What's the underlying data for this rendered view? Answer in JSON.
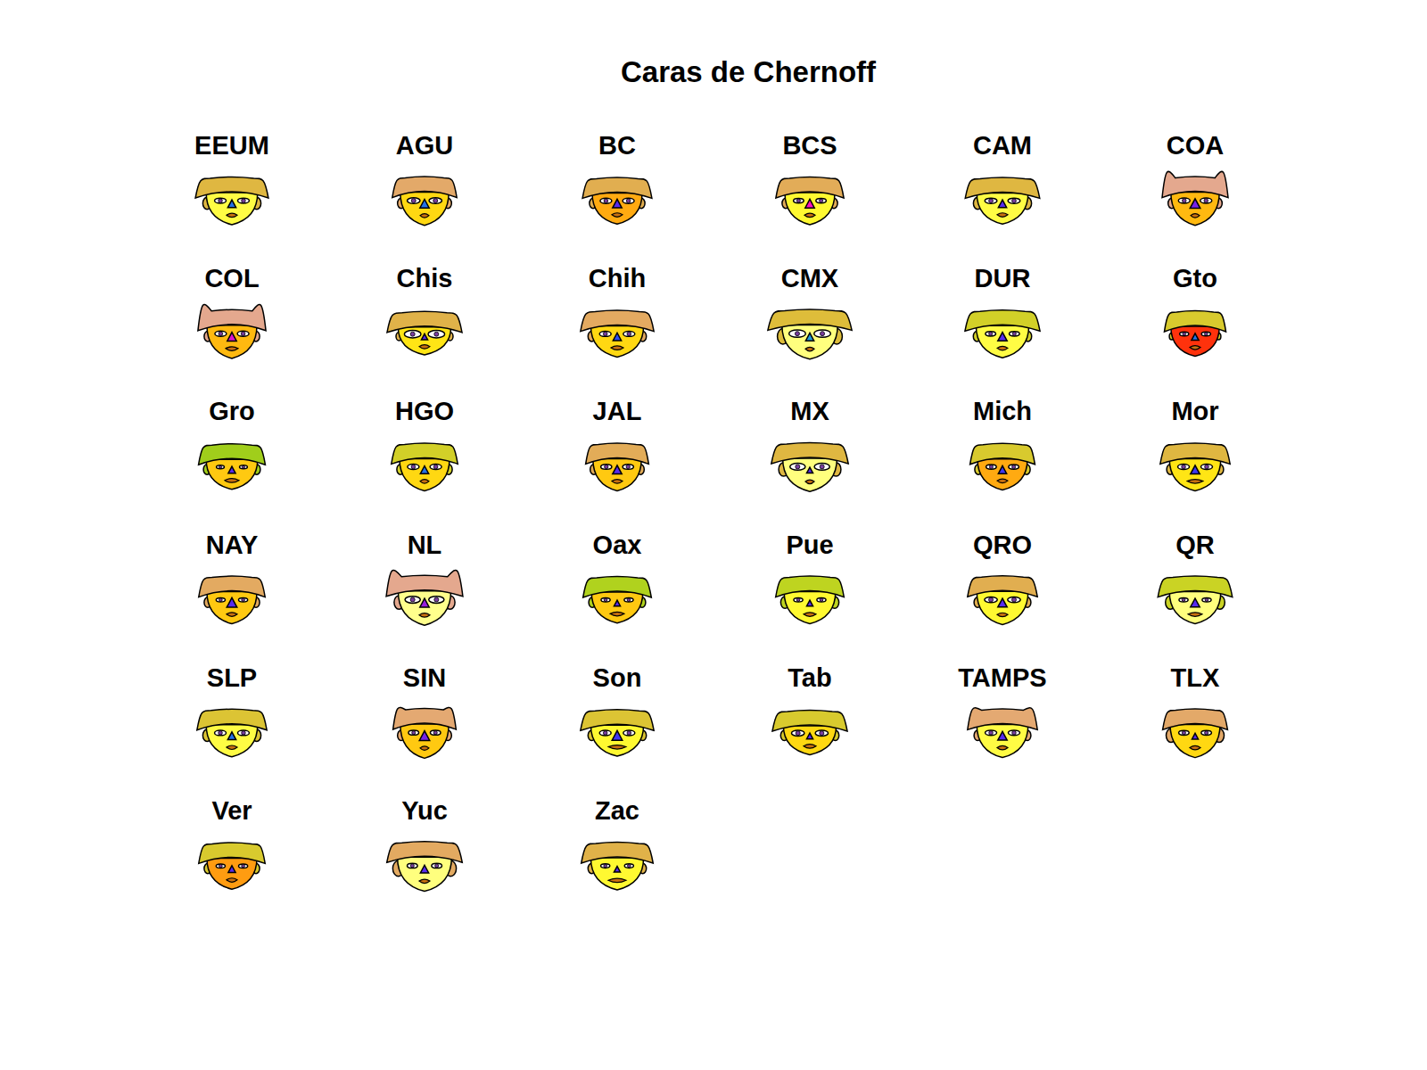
{
  "chart_data": {
    "type": "chernoff",
    "title": "Caras de Chernoff",
    "value_range": [
      0,
      1
    ],
    "faces": [
      {
        "name": "EEUM",
        "values": [
          0.5,
          0.55,
          0.7,
          0.5,
          0.8,
          0.5,
          0.4,
          0.2,
          0.3,
          0.4
        ]
      },
      {
        "name": "AGU",
        "values": [
          0.55,
          0.45,
          0.55,
          0.75,
          0.55,
          0.6,
          0.5,
          0.2,
          0.2,
          0.3
        ]
      },
      {
        "name": "BC",
        "values": [
          0.45,
          0.5,
          0.65,
          0.6,
          0.4,
          0.5,
          0.5,
          0.5,
          0.3,
          0.3
        ]
      },
      {
        "name": "BCS",
        "values": [
          0.5,
          0.5,
          0.6,
          0.65,
          0.75,
          0.4,
          0.5,
          1.0,
          0.3,
          0.3
        ]
      },
      {
        "name": "CAM",
        "values": [
          0.45,
          0.55,
          0.75,
          0.5,
          0.8,
          0.55,
          0.4,
          0.5,
          0.3,
          0.4
        ]
      },
      {
        "name": "COA",
        "values": [
          0.55,
          0.45,
          0.6,
          0.95,
          0.45,
          0.5,
          0.6,
          0.6,
          0.2,
          0.3
        ]
      },
      {
        "name": "COL",
        "values": [
          0.55,
          0.5,
          0.6,
          0.95,
          0.45,
          0.5,
          0.5,
          0.9,
          0.4,
          0.3
        ]
      },
      {
        "name": "Chis",
        "values": [
          0.3,
          0.6,
          0.7,
          0.55,
          0.6,
          0.9,
          0.2,
          0.5,
          0.3,
          0.2
        ]
      },
      {
        "name": "Chih",
        "values": [
          0.45,
          0.6,
          0.65,
          0.7,
          0.55,
          0.5,
          0.4,
          0.3,
          0.4,
          0.3
        ]
      },
      {
        "name": "CMX",
        "values": [
          0.6,
          0.7,
          0.85,
          0.45,
          0.9,
          0.9,
          0.4,
          0.1,
          0.2,
          0.6
        ]
      },
      {
        "name": "DUR",
        "values": [
          0.5,
          0.6,
          0.7,
          0.3,
          0.8,
          0.4,
          0.5,
          0.5,
          0.3,
          0.3
        ]
      },
      {
        "name": "Gto",
        "values": [
          0.4,
          0.45,
          0.45,
          0.35,
          0.05,
          0.3,
          0.3,
          0.2,
          0.3,
          0.1
        ]
      },
      {
        "name": "Gro",
        "values": [
          0.4,
          0.55,
          0.5,
          0.1,
          0.5,
          0.2,
          0.3,
          0.5,
          0.5,
          0.3
        ]
      },
      {
        "name": "HGO",
        "values": [
          0.5,
          0.5,
          0.55,
          0.3,
          0.55,
          0.5,
          0.4,
          0.2,
          0.2,
          0.3
        ]
      },
      {
        "name": "JAL",
        "values": [
          0.5,
          0.45,
          0.5,
          0.65,
          0.5,
          0.45,
          0.5,
          0.5,
          0.3,
          0.3
        ]
      },
      {
        "name": "MX",
        "values": [
          0.55,
          0.65,
          0.7,
          0.5,
          0.9,
          0.8,
          0.2,
          0.5,
          0.2,
          0.5
        ]
      },
      {
        "name": "Mich",
        "values": [
          0.45,
          0.5,
          0.5,
          0.35,
          0.4,
          0.4,
          0.4,
          0.4,
          0.3,
          0.3
        ]
      },
      {
        "name": "Mor",
        "values": [
          0.5,
          0.55,
          0.6,
          0.5,
          0.6,
          0.5,
          0.5,
          0.4,
          0.6,
          0.3
        ]
      },
      {
        "name": "NAY",
        "values": [
          0.5,
          0.5,
          0.55,
          0.7,
          0.5,
          0.3,
          0.6,
          0.5,
          0.3,
          0.3
        ]
      },
      {
        "name": "NL",
        "values": [
          0.6,
          0.6,
          0.75,
          0.95,
          0.92,
          0.8,
          0.5,
          0.7,
          0.3,
          0.5
        ]
      },
      {
        "name": "Oax",
        "values": [
          0.45,
          0.55,
          0.55,
          0.15,
          0.5,
          0.3,
          0.2,
          0.5,
          0.5,
          0.3
        ]
      },
      {
        "name": "Pue",
        "values": [
          0.5,
          0.55,
          0.55,
          0.2,
          0.75,
          0.3,
          0.2,
          0.5,
          0.4,
          0.4
        ]
      },
      {
        "name": "QRO",
        "values": [
          0.55,
          0.55,
          0.6,
          0.6,
          0.75,
          0.6,
          0.5,
          0.5,
          0.3,
          0.3
        ]
      },
      {
        "name": "QR",
        "values": [
          0.5,
          0.55,
          0.75,
          0.25,
          0.9,
          0.3,
          0.5,
          0.5,
          0.5,
          0.5
        ]
      },
      {
        "name": "SLP",
        "values": [
          0.5,
          0.55,
          0.6,
          0.4,
          0.8,
          0.5,
          0.4,
          0.2,
          0.3,
          0.4
        ]
      },
      {
        "name": "SIN",
        "values": [
          0.6,
          0.45,
          0.5,
          0.8,
          0.5,
          0.4,
          0.6,
          0.6,
          0.2,
          0.3
        ]
      },
      {
        "name": "Son",
        "values": [
          0.45,
          0.6,
          0.65,
          0.4,
          0.75,
          0.5,
          0.6,
          0.4,
          0.7,
          0.3
        ]
      },
      {
        "name": "Tab",
        "values": [
          0.35,
          0.6,
          0.7,
          0.35,
          0.55,
          0.6,
          0.2,
          0.5,
          0.4,
          0.3
        ]
      },
      {
        "name": "TAMPS",
        "values": [
          0.55,
          0.55,
          0.6,
          0.8,
          0.8,
          0.5,
          0.5,
          0.5,
          0.3,
          0.3
        ]
      },
      {
        "name": "TLX",
        "values": [
          0.55,
          0.5,
          0.5,
          0.75,
          0.55,
          0.4,
          0.2,
          0.5,
          0.3,
          0.5
        ]
      },
      {
        "name": "Ver",
        "values": [
          0.45,
          0.5,
          0.55,
          0.35,
          0.35,
          0.3,
          0.3,
          0.5,
          0.3,
          0.3
        ]
      },
      {
        "name": "Yuc",
        "values": [
          0.6,
          0.65,
          0.65,
          0.7,
          0.9,
          0.4,
          0.4,
          0.5,
          0.3,
          0.6
        ]
      },
      {
        "name": "Zac",
        "values": [
          0.5,
          0.6,
          0.6,
          0.55,
          0.75,
          0.3,
          0.2,
          0.5,
          0.7,
          0.3
        ]
      }
    ]
  }
}
